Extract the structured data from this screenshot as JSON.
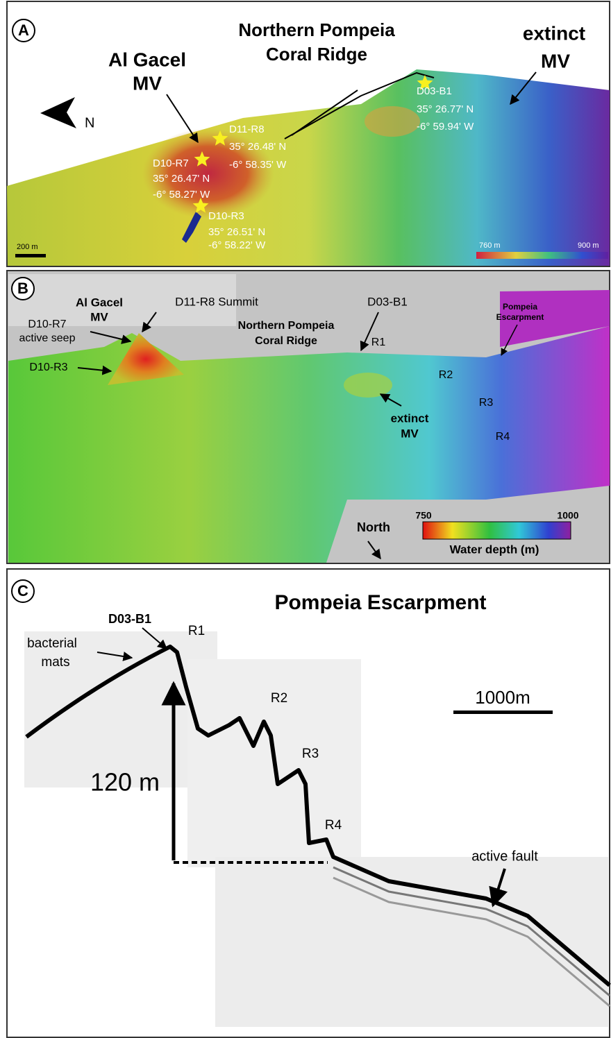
{
  "panel_a": {
    "label": "A",
    "ridge": [
      "Northern Pompeia",
      "Coral Ridge"
    ],
    "gacel": [
      "Al Gacel",
      "MV"
    ],
    "extinct": [
      "extinct",
      "MV"
    ],
    "north": "N",
    "sites": [
      {
        "name": "D03-B1",
        "lat": "35° 26.77' N",
        "lon": "-6° 59.94' W"
      },
      {
        "name": "D11-R8",
        "lat": "35° 26.48' N",
        "lon": "-6° 58.35' W"
      },
      {
        "name": "D10-R7",
        "lat": "35° 26.47' N",
        "lon": "-6° 58.27' W"
      },
      {
        "name": "D10-R3",
        "lat": "35° 26.51' N",
        "lon": "-6° 58.22' W"
      }
    ],
    "scale": "200 m",
    "depth_min": "760 m",
    "depth_max": "900 m"
  },
  "panel_b": {
    "label": "B",
    "gacel": [
      "Al Gacel",
      "MV"
    ],
    "summit": "D11-R8 Summit",
    "d03": "D03-B1",
    "escarpment": [
      "Pompeia",
      "Escarpment"
    ],
    "ridge": [
      "Northern Pompeia",
      "Coral Ridge"
    ],
    "seep": [
      "D10-R7",
      "active seep"
    ],
    "r3site": "D10-R3",
    "ridges": [
      "R1",
      "R2",
      "R3",
      "R4"
    ],
    "extinct": [
      "extinct",
      "MV"
    ],
    "north": "North",
    "depth_min": 750,
    "depth_max": 1000,
    "depth_title": "Water depth (m)"
  },
  "panel_c": {
    "label": "C",
    "title": "Pompeia Escarpment",
    "site": "D03-B1",
    "mats": [
      "bacterial",
      "mats"
    ],
    "ridges": [
      "R1",
      "R2",
      "R3",
      "R4"
    ],
    "scale": "1000m",
    "height": "120 m",
    "fault": "active fault"
  }
}
